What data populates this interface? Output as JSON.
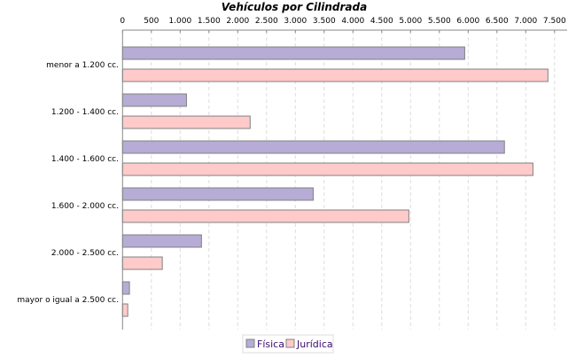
{
  "chart_data": {
    "type": "bar",
    "orientation": "horizontal",
    "title": "Vehículos por Cilindrada",
    "xlabel": "",
    "ylabel": "",
    "xlim": [
      0,
      7700
    ],
    "x_ticks": [
      "0",
      "500",
      "1.000",
      "1.500",
      "2.000",
      "2.500",
      "3.000",
      "3.500",
      "4.000",
      "4.500",
      "5.000",
      "5.500",
      "6.000",
      "6.500",
      "7.000",
      "7.500"
    ],
    "x_axis_position": "top",
    "grid": true,
    "legend_position": "bottom",
    "categories": [
      "menor a 1.200 cc.",
      "1.200 - 1.400 cc.",
      "1.400 - 1.600 cc.",
      "1.600 - 2.000 cc.",
      "2.000 - 2.500 cc.",
      "mayor o igual a 2.500 cc."
    ],
    "series": [
      {
        "name": "Física",
        "color": "#b6acd6",
        "values": [
          5940,
          1110,
          6630,
          3310,
          1370,
          120
        ]
      },
      {
        "name": "Jurídica",
        "color": "#ffcaca",
        "values": [
          7385,
          2215,
          7125,
          4970,
          690,
          90
        ]
      }
    ]
  }
}
